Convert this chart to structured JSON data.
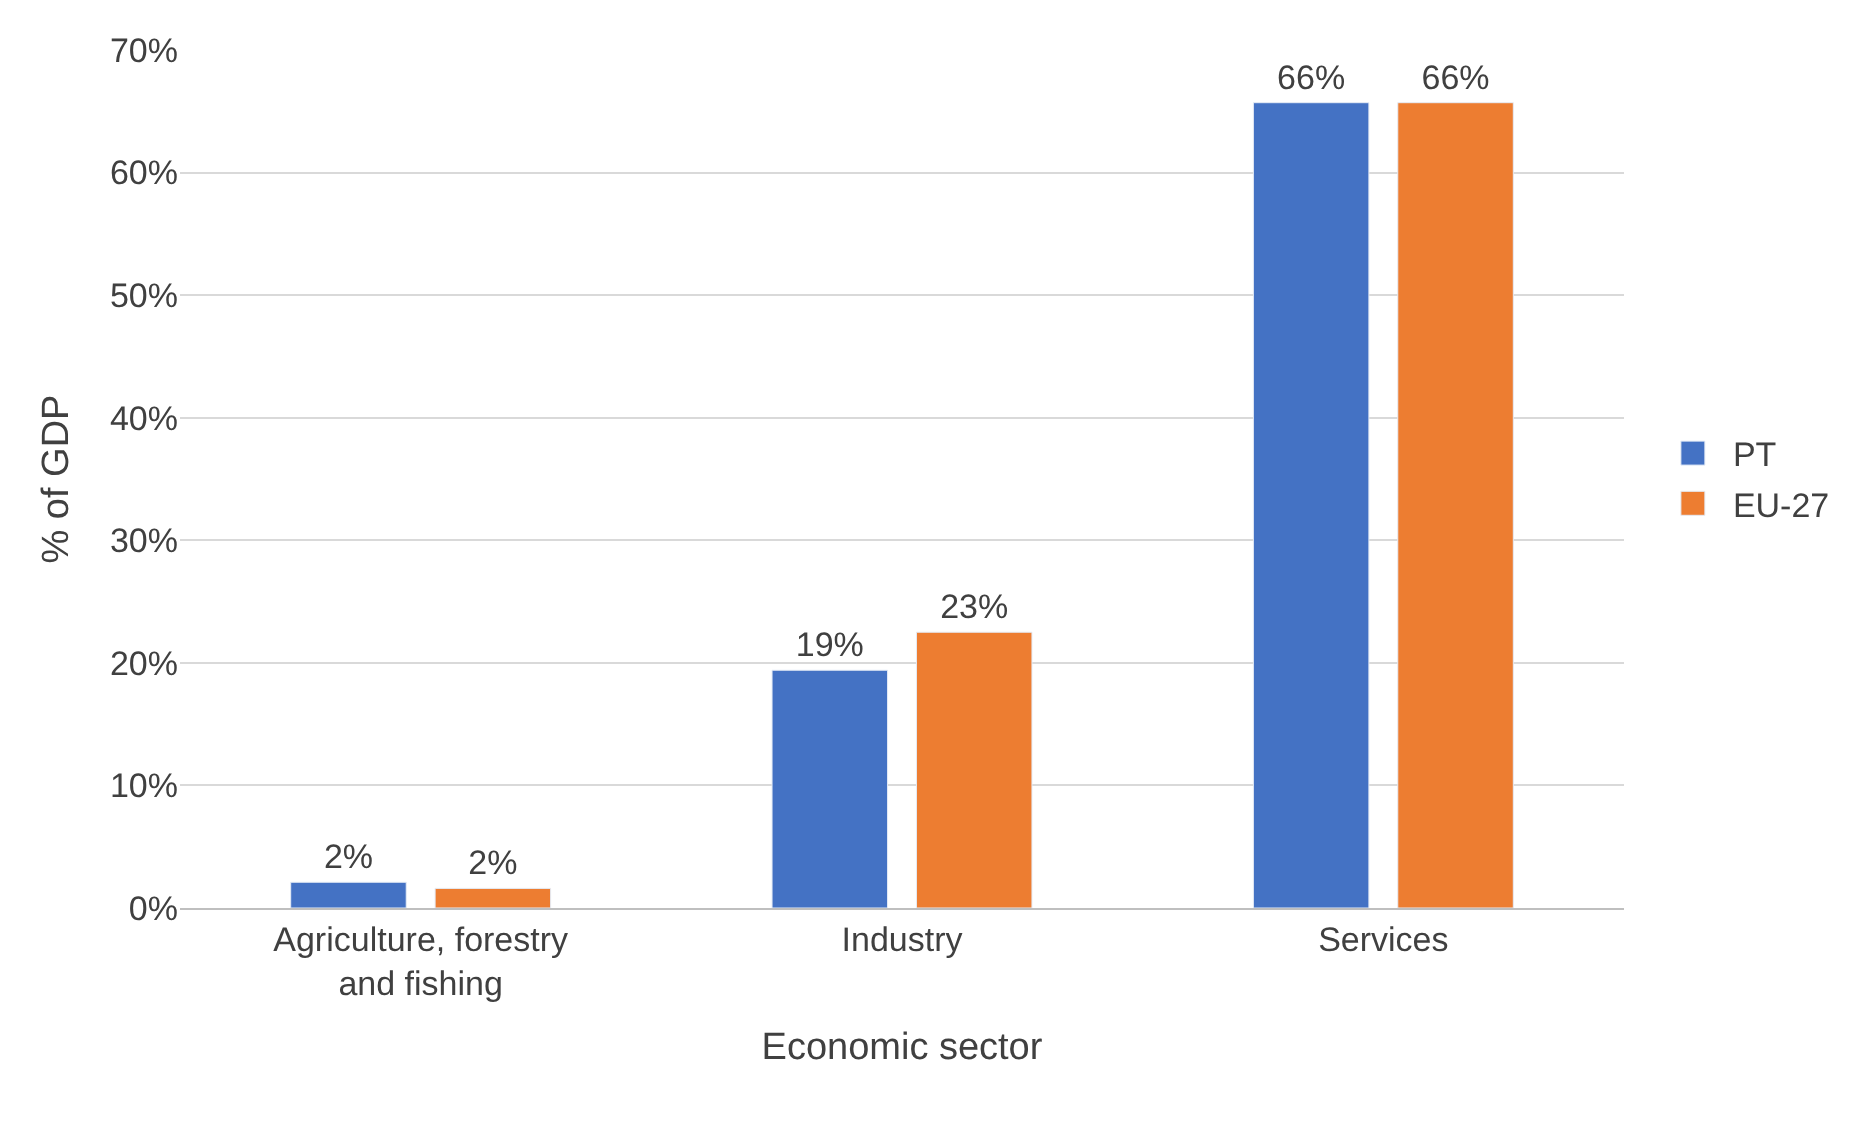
{
  "chart_data": {
    "type": "bar",
    "xlabel": "Economic sector",
    "ylabel": "% of GDP",
    "categories": [
      "Agriculture, forestry\nand fishing",
      "Industry",
      "Services"
    ],
    "series": [
      {
        "name": "PT",
        "color": "#4472c4",
        "values": [
          2.1,
          19.4,
          65.7
        ],
        "value_labels": [
          "2%",
          "19%",
          "66%"
        ]
      },
      {
        "name": "EU-27",
        "color": "#ed7d31",
        "values": [
          1.6,
          22.5,
          65.7
        ],
        "value_labels": [
          "2%",
          "23%",
          "66%"
        ]
      }
    ],
    "ylim": [
      0,
      70
    ],
    "yticks": [
      {
        "value": 0,
        "label": "0%"
      },
      {
        "value": 10,
        "label": "10%"
      },
      {
        "value": 20,
        "label": "20%"
      },
      {
        "value": 30,
        "label": "30%"
      },
      {
        "value": 40,
        "label": "40%"
      },
      {
        "value": 50,
        "label": "50%"
      },
      {
        "value": 60,
        "label": "60%"
      },
      {
        "value": 70,
        "label": "70%"
      }
    ],
    "grid": "y",
    "legend": "right"
  }
}
